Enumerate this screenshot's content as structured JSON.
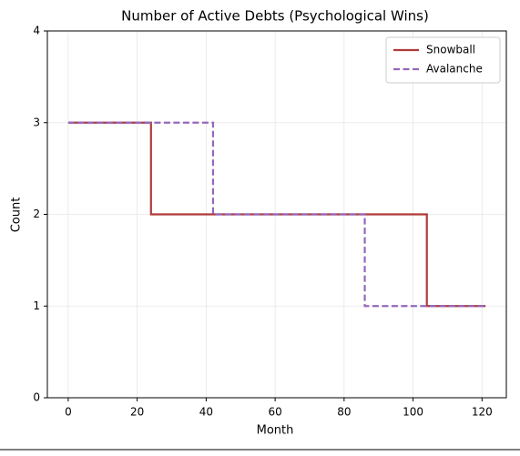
{
  "chart_data": {
    "type": "step",
    "title": "Number of Active Debts (Psychological Wins)",
    "x_label": "Month",
    "y_label": "Count",
    "series": [
      {
        "name": "Snowball",
        "color": "#b03a3a",
        "linestyle": "solid",
        "x": [
          0,
          24,
          104,
          121
        ],
        "values": [
          3,
          2,
          1,
          1
        ]
      },
      {
        "name": "Avalanche",
        "color": "#9467bd",
        "linestyle": "dashed",
        "x": [
          0,
          42,
          86,
          121
        ],
        "values": [
          3,
          2,
          1,
          1
        ]
      }
    ],
    "xlim": [
      -6.05,
      127.05
    ],
    "xticks": [
      0,
      20,
      40,
      60,
      80,
      100,
      120
    ],
    "ylim": [
      0,
      4
    ],
    "yticks": [
      0,
      1,
      2,
      3,
      4
    ],
    "grid": true,
    "legend": "upper right"
  }
}
